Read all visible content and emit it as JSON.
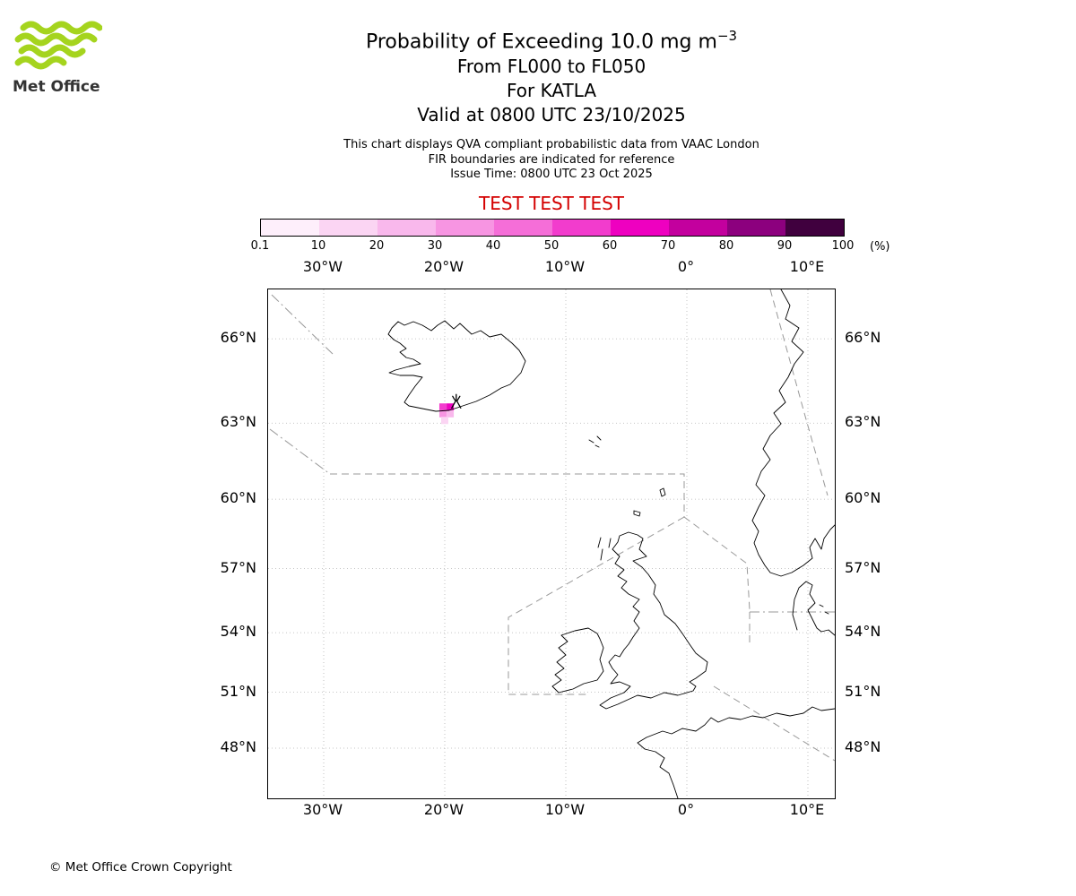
{
  "logo": {
    "text": "Met Office",
    "color": "#a5d41e"
  },
  "header": {
    "title_main": "Probability of Exceeding 10.0 mg m",
    "title_sup": "−3",
    "subtitle_fl": "From FL000 to FL050",
    "subtitle_volcano": "For KATLA",
    "subtitle_valid": "Valid at 0800 UTC 23/10/2025",
    "note_qva": "This chart displays QVA compliant probabilistic data from VAAC London",
    "note_fir": "FIR boundaries are indicated for reference",
    "note_issue": "Issue Time: 0800 UTC 23 Oct 2025",
    "test_banner": "TEST TEST TEST",
    "test_color": "#d40000"
  },
  "colorbar": {
    "tick_labels": [
      "0.1",
      "10",
      "20",
      "30",
      "40",
      "50",
      "60",
      "70",
      "80",
      "90",
      "100"
    ],
    "unit": "(%)",
    "segment_colors": [
      "#feeffb",
      "#fbd5f3",
      "#f9b8ec",
      "#f795e2",
      "#f56ed8",
      "#f23ccd",
      "#ee00c0",
      "#c3009e",
      "#8c007e",
      "#40003e"
    ]
  },
  "map": {
    "lon_labels": [
      "30°W",
      "20°W",
      "10°W",
      "0°",
      "10°E"
    ],
    "lat_labels": [
      "66°N",
      "63°N",
      "60°N",
      "57°N",
      "54°N",
      "51°N",
      "48°N"
    ]
  },
  "footer": {
    "copyright": "© Met Office Crown Copyright"
  },
  "chart_data": {
    "type": "heatmap",
    "title": "Probability of Exceeding 10.0 mg m⁻³",
    "layer": "From FL000 to FL050",
    "volcano": "KATLA",
    "valid_time": "0800 UTC 23/10/2025",
    "issue_time": "0800 UTC 23 Oct 2025",
    "data_source": "QVA compliant probabilistic data from VAAC London",
    "legend": {
      "unit": "%",
      "thresholds": [
        0.1,
        10,
        20,
        30,
        40,
        50,
        60,
        70,
        80,
        90,
        100
      ],
      "colors": [
        "#feeffb",
        "#fbd5f3",
        "#f9b8ec",
        "#f795e2",
        "#f56ed8",
        "#f23ccd",
        "#ee00c0",
        "#c3009e",
        "#8c007e",
        "#40003e"
      ]
    },
    "map_extent": {
      "lon_min": -34.5,
      "lon_max": 12.2,
      "lat_min": 45.6,
      "lat_max": 67.6
    },
    "lon_gridlines": [
      -30,
      -20,
      -10,
      0,
      10
    ],
    "lat_gridlines": [
      66,
      63,
      60,
      57,
      54,
      51,
      48
    ],
    "volcano_location": {
      "name": "KATLA",
      "lat": 63.63,
      "lon": -19.05
    },
    "cells": [
      {
        "lat": 63.6,
        "lon": -20.15,
        "probability_pct": 55
      },
      {
        "lat": 63.6,
        "lon": -19.55,
        "probability_pct": 65
      },
      {
        "lat": 63.35,
        "lon": -20.15,
        "probability_pct": 35
      },
      {
        "lat": 63.35,
        "lon": -19.55,
        "probability_pct": 25
      },
      {
        "lat": 63.1,
        "lon": -20.0,
        "probability_pct": 15
      }
    ]
  }
}
